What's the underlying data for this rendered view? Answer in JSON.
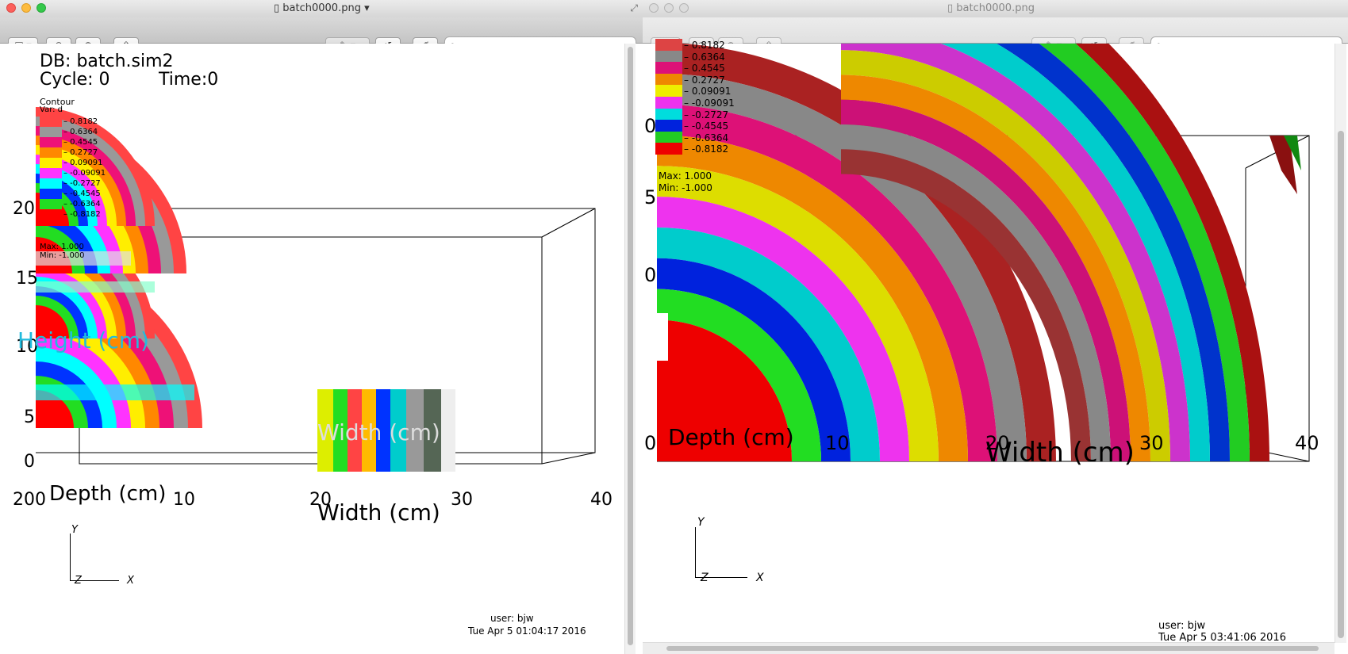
{
  "left_window": {
    "title": "batch0000.png",
    "search": {
      "placeholder": ""
    },
    "plot": {
      "db_line": "DB: batch.sim2",
      "cycle_line": "Cycle: 0",
      "time_line": "Time:0",
      "legend_title": "Contour",
      "legend_var": "Var: d",
      "legend_max": "Max: 1.000",
      "legend_min": "Min: -1.000",
      "height_label": "Height (cm)",
      "width_label": "Width (cm)",
      "width_ghost": "Width (cm)",
      "depth_label": "Depth (cm)",
      "y_ticks": [
        "20",
        "15",
        "10",
        "5",
        "0"
      ],
      "x_ticks": [
        "10",
        "20",
        "30",
        "40"
      ],
      "depth_tick": "200",
      "axis_y": "Y",
      "axis_x": "X",
      "axis_z": "Z",
      "user": "user: bjw",
      "date": "Tue Apr  5 01:04:17 2016"
    }
  },
  "right_window": {
    "title": "batch0000.png",
    "search": {
      "placeholder": ""
    },
    "plot": {
      "legend_max": "Max: 1.000",
      "legend_min": "Min: -1.000",
      "width_label": "Width (cm)",
      "depth_label": "Depth (cm)",
      "y_ticks": [
        "0",
        "5",
        "0"
      ],
      "x_ticks": [
        "0",
        "10",
        "20",
        "30",
        "40"
      ],
      "axis_y": "Y",
      "axis_x": "X",
      "axis_z": "Z",
      "user": "user: bjw",
      "date": "Tue Apr  5 03:41:06 2016"
    }
  },
  "legend_levels": [
    {
      "label": "0.8182",
      "color": "#ff4444"
    },
    {
      "label": "0.6364",
      "color": "#999999"
    },
    {
      "label": "0.4545",
      "color": "#ee1177"
    },
    {
      "label": "0.2727",
      "color": "#ff8800"
    },
    {
      "label": "0.09091",
      "color": "#ffee00"
    },
    {
      "label": "-0.09091",
      "color": "#ff33ff"
    },
    {
      "label": "-0.2727",
      "color": "#00ffff"
    },
    {
      "label": "-0.4545",
      "color": "#0033ff"
    },
    {
      "label": "-0.6364",
      "color": "#22dd22"
    },
    {
      "label": "-0.8182",
      "color": "#ff0000"
    }
  ],
  "right_legend_levels": [
    {
      "label": "0.8182",
      "color": "#dd4444"
    },
    {
      "label": "0.6364",
      "color": "#888888"
    },
    {
      "label": "0.4545",
      "color": "#dd1177"
    },
    {
      "label": "0.2727",
      "color": "#ee8800"
    },
    {
      "label": "0.09091",
      "color": "#eeee00"
    },
    {
      "label": "-0.09091",
      "color": "#ee33ee"
    },
    {
      "label": "-0.2727",
      "color": "#00dddd"
    },
    {
      "label": "-0.4545",
      "color": "#0022dd"
    },
    {
      "label": "-0.6364",
      "color": "#22cc22"
    },
    {
      "label": "-0.8182",
      "color": "#ee0000"
    }
  ],
  "right_bands": [
    "#ee0000",
    "#22dd22",
    "#0022dd",
    "#00cccc",
    "#ee33ee",
    "#dddd00",
    "#ee8800",
    "#dd1177",
    "#888888",
    "#aa2222"
  ],
  "right_bands_far": [
    "#993333",
    "#888888",
    "#cc1177",
    "#ee8800",
    "#cccc00",
    "#cc33cc",
    "#00cccc",
    "#0033cc",
    "#22cc22",
    "#aa1111"
  ],
  "colors": {
    "accent": "#000000"
  }
}
